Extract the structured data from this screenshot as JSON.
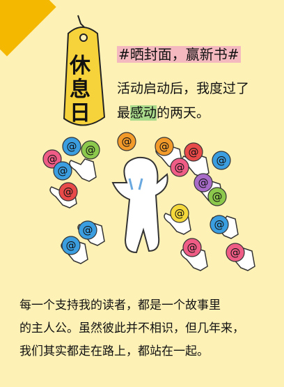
{
  "tag": {
    "line1": "休",
    "line2": "息",
    "line3": "日"
  },
  "title": "#晒封面，赢新书#",
  "line2": "活动启动后，我度过了",
  "line3": {
    "before": "最",
    "highlight": "感动",
    "after": "的两天。"
  },
  "bottom_text": [
    "每一个支持我的读者，都是一个故事里",
    "的主人公。虽然彼此并不相识，但几年来，",
    "我们其实都走在路上，都站在一起。"
  ],
  "balloon_symbol": "@",
  "colors": {
    "background": "#fdf1b6",
    "corner": "#f5b800",
    "tag": "#f6d33a",
    "balloon_pink": "#ef5d86",
    "balloon_blue": "#3b9ee0",
    "balloon_green": "#8cc84b",
    "balloon_purple": "#a86cc8",
    "balloon_orange": "#f29b2b",
    "balloon_yellow": "#f5d83b",
    "balloon_red": "#e84a4a"
  }
}
